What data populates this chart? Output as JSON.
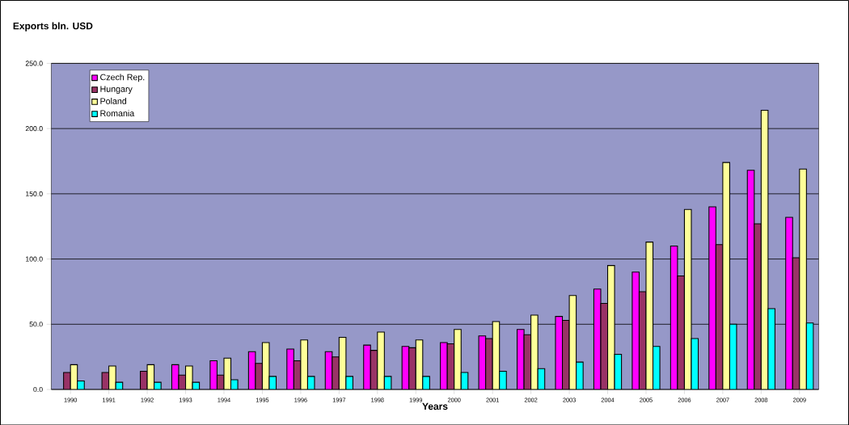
{
  "chart_data": {
    "type": "bar",
    "title": "Exports bln. USD",
    "xlabel": "Years",
    "categories": [
      "1990",
      "1991",
      "1992",
      "1993",
      "1994",
      "1995",
      "1996",
      "1997",
      "1998",
      "1999",
      "2000",
      "2001",
      "2002",
      "2003",
      "2004",
      "2005",
      "2006",
      "2007",
      "2008",
      "2009"
    ],
    "series": [
      {
        "name": "Czech Rep.",
        "color": "#ff00ff",
        "values": [
          null,
          null,
          null,
          19,
          22,
          29,
          31,
          29,
          34,
          33,
          36,
          41,
          46,
          56,
          77,
          90,
          110,
          140,
          168,
          132
        ]
      },
      {
        "name": "Hungary",
        "color": "#993366",
        "values": [
          13,
          13,
          14,
          11,
          11,
          20,
          22,
          25,
          30,
          32,
          35,
          39,
          42,
          53,
          66,
          75,
          87,
          111,
          127,
          101
        ]
      },
      {
        "name": "Poland",
        "color": "#ffff99",
        "values": [
          19,
          18,
          19,
          18,
          24,
          36,
          38,
          40,
          44,
          38,
          46,
          52,
          57,
          72,
          95,
          113,
          138,
          174,
          214,
          169
        ]
      },
      {
        "name": "Romania",
        "color": "#00ffff",
        "values": [
          6.5,
          5.5,
          5.5,
          5.5,
          7.5,
          10,
          10,
          10,
          10,
          10,
          13,
          14,
          16,
          21,
          27,
          33,
          39,
          50,
          62,
          51
        ]
      }
    ],
    "ylim": [
      0,
      250
    ],
    "yticks": [
      {
        "value": 0,
        "label": "0.0"
      },
      {
        "value": 50,
        "label": "50.0"
      },
      {
        "value": 100,
        "label": "100.0"
      },
      {
        "value": 150,
        "label": "150.0"
      },
      {
        "value": 200,
        "label": "200.0"
      },
      {
        "value": 250,
        "label": "250.0"
      }
    ],
    "grid": "y",
    "legend": "top left"
  }
}
